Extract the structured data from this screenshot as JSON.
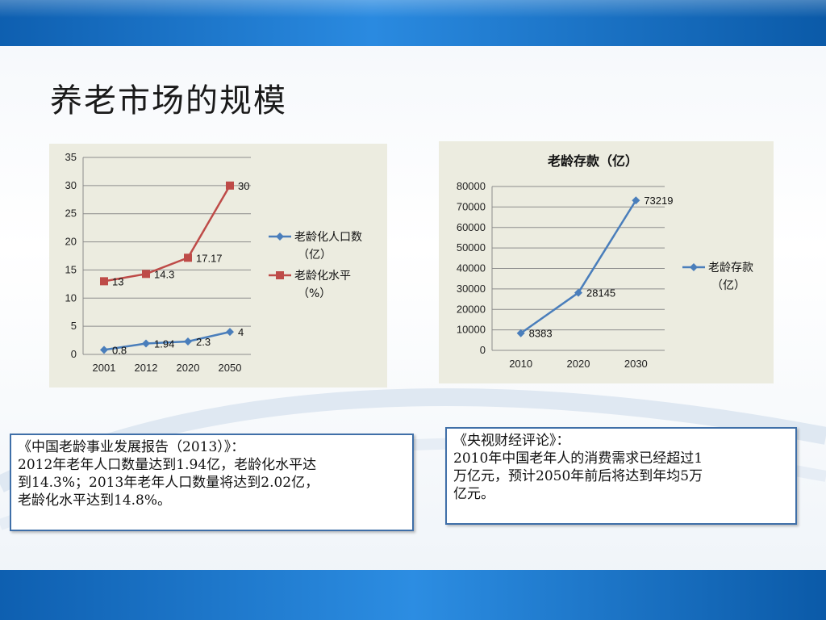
{
  "slide": {
    "title": "养老市场的规模"
  },
  "colors": {
    "series_blue": "#4a7ebb",
    "series_red": "#be4b48",
    "top_bar": "#1a6fc4",
    "note_border": "#3f6fa8"
  },
  "chart_data": [
    {
      "type": "line",
      "title": "",
      "x": [
        "2001",
        "2012",
        "2020",
        "2050"
      ],
      "ylim": [
        0,
        35
      ],
      "yticks": [
        0,
        5,
        10,
        15,
        20,
        25,
        30,
        35
      ],
      "grid": true,
      "legend_position": "right",
      "series": [
        {
          "name": "老龄化人口数（亿）",
          "legend_lines": [
            "老龄化人口数",
            "（亿）"
          ],
          "color": "#4a7ebb",
          "marker": "diamond",
          "values": [
            0.8,
            1.94,
            2.3,
            4
          ],
          "labels": [
            "0.8",
            "1.94",
            "2.3",
            "4"
          ]
        },
        {
          "name": "老龄化水平（%）",
          "legend_lines": [
            "老龄化水平",
            "（%）"
          ],
          "color": "#be4b48",
          "marker": "square",
          "values": [
            13,
            14.3,
            17.17,
            30
          ],
          "labels": [
            "13",
            "14.3",
            "17.17",
            "30"
          ]
        }
      ]
    },
    {
      "type": "line",
      "title": "老龄存款（亿）",
      "x": [
        "2010",
        "2020",
        "2030"
      ],
      "ylim": [
        0,
        80000
      ],
      "yticks": [
        0,
        10000,
        20000,
        30000,
        40000,
        50000,
        60000,
        70000,
        80000
      ],
      "grid": true,
      "legend_position": "right",
      "series": [
        {
          "name": "老龄存款（亿）",
          "legend_lines": [
            "老龄存款",
            "（亿）"
          ],
          "color": "#4a7ebb",
          "marker": "diamond",
          "values": [
            8383,
            28145,
            73219
          ],
          "labels": [
            "8383",
            "28145",
            "73219"
          ]
        }
      ]
    }
  ],
  "notes": [
    {
      "lines": [
        "《中国老龄事业发展报告（2013）》：",
        "2012年老年人口数量达到1.94亿，老龄化水平达",
        "到14.3%；2013年老年人口数量将达到2.02亿，",
        "老龄化水平达到14.8%。"
      ]
    },
    {
      "lines": [
        "《央视财经评论》：",
        "2010年中国老年人的消费需求已经超过1",
        "万亿元，预计2050年前后将达到年均5万",
        "亿元。"
      ]
    }
  ]
}
